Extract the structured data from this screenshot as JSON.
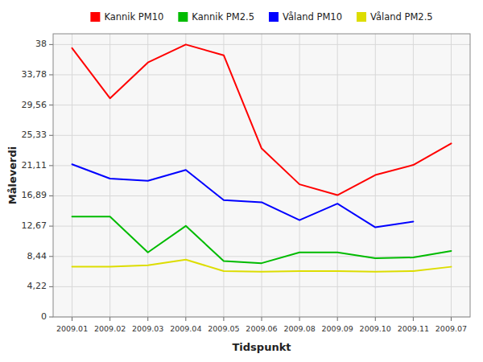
{
  "chart_data": {
    "type": "line",
    "x_label": "Tidspunkt",
    "y_label": "Måleverdi",
    "categories": [
      "2009.01",
      "2009.02",
      "2009.03",
      "2009.04",
      "2009.05",
      "2009.06",
      "2009.08",
      "2009.09",
      "2009.10",
      "2009.11",
      "2009.07"
    ],
    "series": [
      {
        "name": "Kannik PM10",
        "color": "#ff0000",
        "values": [
          37.5,
          30.5,
          35.5,
          38.0,
          36.5,
          23.5,
          18.5,
          17.0,
          19.8,
          21.2,
          24.2
        ]
      },
      {
        "name": "Kannik PM2.5",
        "color": "#00bb00",
        "values": [
          14.0,
          14.0,
          9.0,
          12.7,
          7.8,
          7.5,
          9.0,
          9.0,
          8.2,
          8.3,
          9.2
        ]
      },
      {
        "name": "Våland PM10",
        "color": "#0000ff",
        "values": [
          21.3,
          19.3,
          19.0,
          20.5,
          16.3,
          16.0,
          13.5,
          15.8,
          12.5,
          13.3,
          null
        ]
      },
      {
        "name": "Våland PM2.5",
        "color": "#dddd00",
        "values": [
          7.0,
          7.0,
          7.2,
          8.0,
          6.4,
          6.3,
          6.4,
          6.4,
          6.3,
          6.4,
          7.0
        ]
      }
    ],
    "ylim": [
      0,
      39.5
    ],
    "yticks": [
      0,
      {
        "value": 4.22,
        "label": "4,22"
      },
      {
        "value": 8.44,
        "label": "8,44"
      },
      {
        "value": 12.67,
        "label": "12,67"
      },
      {
        "value": 16.89,
        "label": "16,89"
      },
      {
        "value": 21.11,
        "label": "21,11"
      },
      {
        "value": 25.33,
        "label": "25,33"
      },
      {
        "value": 29.56,
        "label": "29,56"
      },
      {
        "value": 33.78,
        "label": "33,78"
      },
      38
    ],
    "grid": true,
    "legend": "top"
  }
}
